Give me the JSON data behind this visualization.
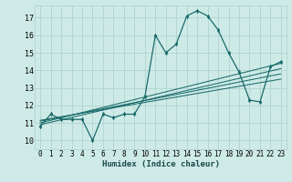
{
  "title": "",
  "xlabel": "Humidex (Indice chaleur)",
  "ylabel": "",
  "bg_color": "#ceeae7",
  "grid_color": "#b0d4d0",
  "line_color": "#1a6b6b",
  "xlim": [
    -0.5,
    23.5
  ],
  "ylim": [
    9.5,
    17.7
  ],
  "xticks": [
    0,
    1,
    2,
    3,
    4,
    5,
    6,
    7,
    8,
    9,
    10,
    11,
    12,
    13,
    14,
    15,
    16,
    17,
    18,
    19,
    20,
    21,
    22,
    23
  ],
  "yticks": [
    10,
    11,
    12,
    13,
    14,
    15,
    16,
    17
  ],
  "series_x": [
    0,
    1,
    2,
    3,
    4,
    5,
    6,
    7,
    8,
    9,
    10,
    11,
    12,
    13,
    14,
    15,
    16,
    17,
    18,
    19,
    20,
    21,
    22,
    23
  ],
  "series_y": [
    10.8,
    11.5,
    11.2,
    11.2,
    11.2,
    10.0,
    11.5,
    11.3,
    11.5,
    11.5,
    12.5,
    16.0,
    15.0,
    15.5,
    17.1,
    17.4,
    17.1,
    16.3,
    15.0,
    13.9,
    12.3,
    12.2,
    14.2,
    14.5
  ],
  "regression_lines": [
    {
      "x": [
        0,
        23
      ],
      "y": [
        10.9,
        14.1
      ]
    },
    {
      "x": [
        0,
        23
      ],
      "y": [
        11.0,
        14.4
      ]
    },
    {
      "x": [
        0,
        23
      ],
      "y": [
        11.1,
        13.8
      ]
    },
    {
      "x": [
        0,
        23
      ],
      "y": [
        11.15,
        13.5
      ]
    }
  ],
  "tick_fontsize": 5.5,
  "xlabel_fontsize": 6.5
}
